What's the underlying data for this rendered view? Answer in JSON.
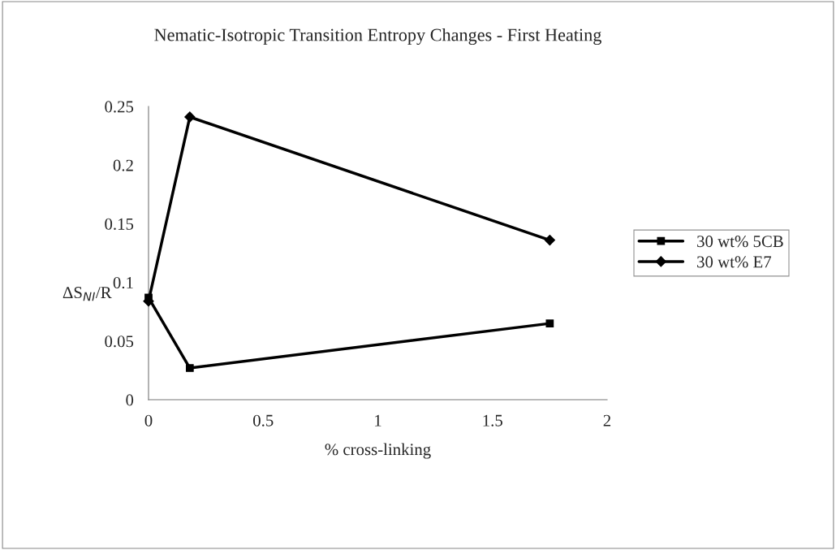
{
  "chart_data": {
    "type": "line",
    "title": "Nematic-Isotropic Transition Entropy Changes - First Heating",
    "xlabel": "% cross-linking",
    "ylabel": "ΔS$_{NI}$/R",
    "xlim": [
      0,
      2
    ],
    "xticks": [
      0,
      0.5,
      1,
      1.5,
      2
    ],
    "ylim": [
      0,
      0.25
    ],
    "yticks": [
      0,
      0.05,
      0.1,
      0.15,
      0.2,
      0.25
    ],
    "x": [
      0,
      0.18,
      1.75
    ],
    "series": [
      {
        "name": "30 wt% 5CB",
        "color": "#000000",
        "values": [
          0.087,
          0.027,
          0.065
        ],
        "marker": "square"
      },
      {
        "name": "30 wt% E7",
        "color": "#000000",
        "values": [
          0.084,
          0.241,
          0.136
        ],
        "marker": "diamond"
      }
    ],
    "legend": "right",
    "grid": false,
    "line_style": "solid"
  }
}
